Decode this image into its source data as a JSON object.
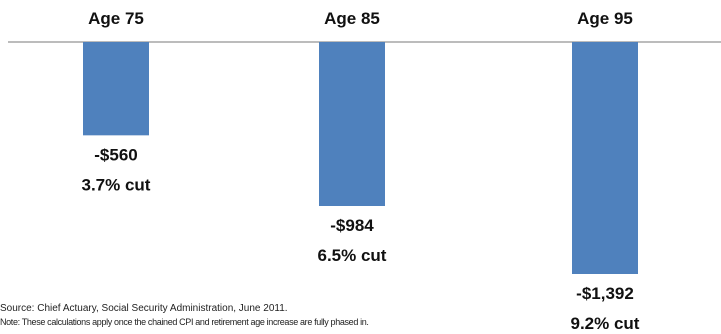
{
  "chart_data": {
    "type": "bar",
    "orientation": "vertical",
    "categories": [
      "Age 75",
      "Age 85",
      "Age 95"
    ],
    "values": [
      -560,
      -984,
      -1392
    ],
    "value_labels": [
      "-$560",
      "-$984",
      "-$1,392"
    ],
    "cut_labels": [
      "3.7% cut",
      "6.5% cut",
      "9.2% cut"
    ],
    "category_axis_position": "top",
    "grid": false,
    "legend": "none",
    "bar_color": "#4f81bd",
    "axis_color": "#a6a6a6"
  },
  "footnotes": {
    "source": "Source: Chief Actuary,  Social Security Administration, June 2011.",
    "note": "Note: These calculations apply once the chained CPI and retirement age increase are fully phased in."
  }
}
